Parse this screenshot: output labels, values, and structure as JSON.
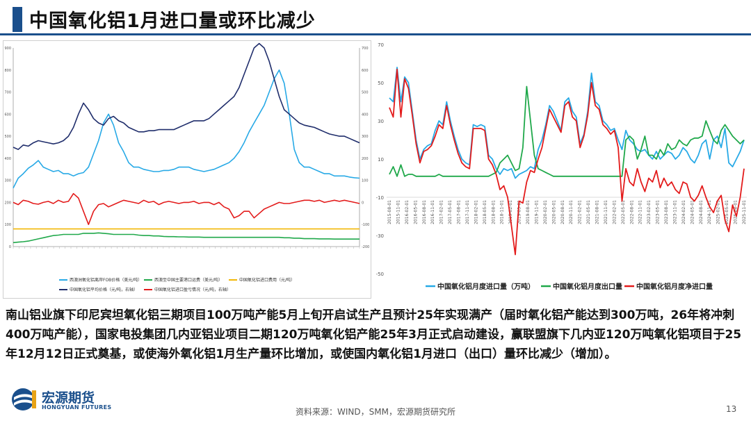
{
  "header": {
    "title": "中国氧化铝1月进口量或环比减少"
  },
  "body_text": "南山铝业旗下印尼宾坦氧化铝三期项目100万吨产能5月上旬开启试生产且预计25年实现满产（届时氧化铝产能达到300万吨，26年将冲刺400万吨产能），国家电投集团几内亚铝业项目二期120万吨氧化铝产能25年3月正式启动建设，赢联盟旗下几内亚120万吨氧化铝项目于25年12月12日正式奠基，或使海外氧化铝1月生产量环比增加，或使国内氧化铝1月进口（出口）量环比减少（增加）。",
  "footer": {
    "source": "资料来源：WIND，SMM，宏源期货研究所",
    "page": "13",
    "logo_cn": "宏源期货",
    "logo_en": "HONGYUAN FUTURES"
  },
  "colors": {
    "brand": "#1a4f8c",
    "green": "#1fa84a",
    "red": "#e31b1b",
    "lightblue": "#27a9e6",
    "navy": "#1f2d6b",
    "gold": "#f2b705"
  },
  "chart_data": [
    {
      "type": "line",
      "left_axis_ticks": [
        "900",
        "800",
        "700",
        "600",
        "500",
        "400",
        "300",
        "200",
        "100",
        "0"
      ],
      "right_axis_ticks": [
        "700",
        "600",
        "500",
        "400",
        "300",
        "200",
        "100",
        "0",
        "-100",
        "-200"
      ],
      "ylim_left": [
        0,
        900
      ],
      "ylim_right": [
        -200,
        700
      ],
      "grid": false,
      "legend_position": "bottom",
      "series": [
        {
          "name": "西澳洲氧化铝离岸FOB价格（美元/吨）",
          "color": "#27a9e6",
          "axis": "left",
          "values": [
            265,
            310,
            330,
            355,
            370,
            390,
            360,
            350,
            340,
            345,
            330,
            330,
            320,
            330,
            335,
            360,
            420,
            480,
            560,
            600,
            550,
            470,
            430,
            380,
            360,
            360,
            350,
            345,
            340,
            340,
            345,
            345,
            350,
            360,
            360,
            360,
            350,
            345,
            340,
            345,
            350,
            360,
            370,
            380,
            400,
            430,
            470,
            520,
            560,
            600,
            640,
            700,
            760,
            800,
            740,
            600,
            440,
            380,
            360,
            360,
            350,
            340,
            330,
            330,
            320,
            320,
            320,
            315,
            312,
            310
          ]
        },
        {
          "name": "西澳至中国主要港口运费（美元/吨）",
          "color": "#1fa84a",
          "axis": "left",
          "values": [
            18,
            20,
            22,
            25,
            30,
            35,
            40,
            45,
            50,
            52,
            55,
            55,
            55,
            55,
            60,
            60,
            60,
            62,
            60,
            58,
            55,
            55,
            55,
            55,
            55,
            52,
            50,
            50,
            48,
            48,
            46,
            45,
            45,
            44,
            44,
            43,
            43,
            43,
            42,
            42,
            42,
            42,
            42,
            42,
            42,
            42,
            42,
            42,
            42,
            42,
            42,
            42,
            42,
            42,
            40,
            40,
            38,
            38,
            36,
            36,
            36,
            35,
            35,
            35,
            34,
            34,
            34,
            34,
            34,
            34
          ]
        },
        {
          "name": "中国氧化铝进口费用（元/吨）",
          "color": "#f2b705",
          "axis": "left",
          "values": [
            80,
            80,
            80,
            80,
            80,
            80,
            80,
            80,
            80,
            80,
            80,
            80,
            80,
            80,
            80,
            80,
            80,
            80,
            80,
            80,
            80,
            80,
            80,
            80,
            80,
            80,
            80,
            80,
            80,
            80,
            80,
            80,
            80,
            80,
            80,
            80,
            80,
            80,
            80,
            80,
            80,
            80,
            80,
            80,
            80,
            80,
            80,
            80,
            80,
            80,
            80,
            80,
            80,
            80,
            80,
            80,
            80,
            80,
            80,
            80,
            80,
            80,
            80,
            80,
            80,
            80,
            80,
            80,
            80,
            80
          ]
        },
        {
          "name": "中国氧化铝平均价格（元/吨，右轴）",
          "color": "#1f2d6b",
          "axis": "right",
          "values": [
            250,
            240,
            260,
            255,
            270,
            280,
            275,
            270,
            265,
            270,
            280,
            300,
            340,
            400,
            450,
            420,
            380,
            360,
            350,
            380,
            390,
            370,
            360,
            340,
            330,
            320,
            320,
            325,
            325,
            330,
            330,
            330,
            330,
            340,
            350,
            360,
            370,
            370,
            370,
            380,
            400,
            420,
            440,
            460,
            480,
            520,
            580,
            640,
            700,
            720,
            700,
            640,
            560,
            480,
            420,
            400,
            380,
            360,
            350,
            345,
            340,
            330,
            320,
            310,
            305,
            300,
            300,
            290,
            280,
            270
          ]
        },
        {
          "name": "中国氧化铝进口盈亏情况（元/吨，右轴）",
          "color": "#e31b1b",
          "axis": "right",
          "values": [
            0,
            -10,
            10,
            5,
            -5,
            -8,
            0,
            5,
            -5,
            10,
            0,
            5,
            40,
            20,
            -40,
            -100,
            -40,
            -10,
            -5,
            -20,
            -10,
            0,
            10,
            5,
            0,
            -5,
            10,
            0,
            5,
            -10,
            0,
            5,
            0,
            -5,
            0,
            0,
            5,
            -5,
            0,
            0,
            -10,
            0,
            -20,
            -30,
            -70,
            -60,
            -40,
            -40,
            -70,
            -50,
            -30,
            -20,
            -10,
            0,
            -5,
            -5,
            0,
            5,
            10,
            10,
            5,
            10,
            0,
            5,
            10,
            5,
            10,
            5,
            0,
            -5
          ]
        }
      ]
    },
    {
      "type": "line",
      "y_ticks": [
        "70",
        "50",
        "30",
        "10",
        "-10",
        "-30",
        "-50"
      ],
      "ylim": [
        -50,
        70
      ],
      "grid": false,
      "legend_position": "bottom",
      "x_tick_labels": [
        "2015-08-01",
        "2015-11-01",
        "2016-02-01",
        "2016-05-01",
        "2016-08-01",
        "2016-11-01",
        "2017-02-01",
        "2017-05-01",
        "2017-08-01",
        "2017-11-01",
        "2018-02-01",
        "2018-05-01",
        "2018-08-01",
        "2018-11-01",
        "2019-02-01",
        "2019-05-01",
        "2019-08-01",
        "2019-11-01",
        "2020-02-01",
        "2020-05-01",
        "2020-08-01",
        "2020-11-01",
        "2021-02-01",
        "2021-05-01",
        "2021-08-01",
        "2021-11-01",
        "2022-02-01",
        "2022-05-01",
        "2022-08-01",
        "2022-11-01",
        "2023-02-01",
        "2023-05-01",
        "2023-08-01",
        "2023-11-01",
        "2024-02-01",
        "2024-05-01",
        "2024-08-01",
        "2024-11-01",
        "2025-02-01",
        "2025-05-01",
        "2025-08-01",
        "2025-11-01"
      ],
      "series": [
        {
          "name": "中国氧化铝月度进口量（万吨）",
          "color": "#27a9e6",
          "values": [
            42,
            40,
            58,
            40,
            53,
            50,
            35,
            20,
            10,
            15,
            17,
            18,
            25,
            30,
            28,
            40,
            30,
            22,
            15,
            10,
            8,
            7,
            28,
            27,
            28,
            27,
            12,
            10,
            5,
            2,
            5,
            4,
            5,
            0,
            2,
            3,
            4,
            6,
            5,
            15,
            20,
            28,
            38,
            35,
            30,
            25,
            40,
            42,
            35,
            32,
            18,
            23,
            35,
            55,
            40,
            38,
            30,
            28,
            25,
            26,
            20,
            15,
            25,
            20,
            18,
            15,
            14,
            15,
            12,
            10,
            14,
            10,
            12,
            14,
            13,
            10,
            12,
            16,
            14,
            10,
            8,
            12,
            18,
            20,
            10,
            20,
            22,
            16,
            26,
            8,
            6,
            10,
            14,
            20
          ]
        },
        {
          "name": "中国氧化铝月度出口量",
          "color": "#1fa84a",
          "values": [
            2,
            6,
            1,
            7,
            1,
            2,
            2,
            1,
            1,
            1,
            1,
            1,
            1,
            2,
            1,
            1,
            1,
            1,
            1,
            1,
            1,
            1,
            1,
            1,
            1,
            1,
            1,
            2,
            3,
            8,
            10,
            12,
            8,
            4,
            5,
            16,
            48,
            30,
            12,
            5,
            4,
            3,
            2,
            1,
            1,
            1,
            1,
            1,
            1,
            1,
            1,
            1,
            1,
            1,
            1,
            1,
            1,
            1,
            1,
            1,
            1,
            1,
            20,
            22,
            20,
            10,
            15,
            22,
            12,
            12,
            10,
            15,
            12,
            18,
            15,
            16,
            20,
            18,
            17,
            20,
            21,
            21,
            22,
            30,
            25,
            20,
            18,
            25,
            28,
            25,
            22,
            20,
            18,
            20
          ]
        },
        {
          "name": "中国氧化铝月度净进口量",
          "color": "#e31b1b",
          "values": [
            37,
            32,
            57,
            32,
            52,
            47,
            33,
            18,
            8,
            14,
            15,
            17,
            22,
            28,
            26,
            38,
            28,
            20,
            13,
            8,
            6,
            5,
            26,
            26,
            26,
            25,
            10,
            7,
            2,
            -6,
            -4,
            -10,
            -25,
            -40,
            -12,
            -13,
            -2,
            4,
            3,
            10,
            16,
            26,
            36,
            32,
            28,
            24,
            38,
            40,
            32,
            30,
            16,
            22,
            33,
            50,
            38,
            36,
            28,
            26,
            23,
            25,
            16,
            -12,
            5,
            -2,
            -4,
            5,
            -2,
            -7,
            0,
            -2,
            4,
            -5,
            0,
            -4,
            -2,
            -6,
            -8,
            -2,
            -3,
            -10,
            -12,
            -9,
            -4,
            -10,
            -15,
            -18,
            -12,
            -9,
            -22,
            -28,
            -14,
            -20,
            -10,
            5
          ]
        }
      ]
    }
  ]
}
